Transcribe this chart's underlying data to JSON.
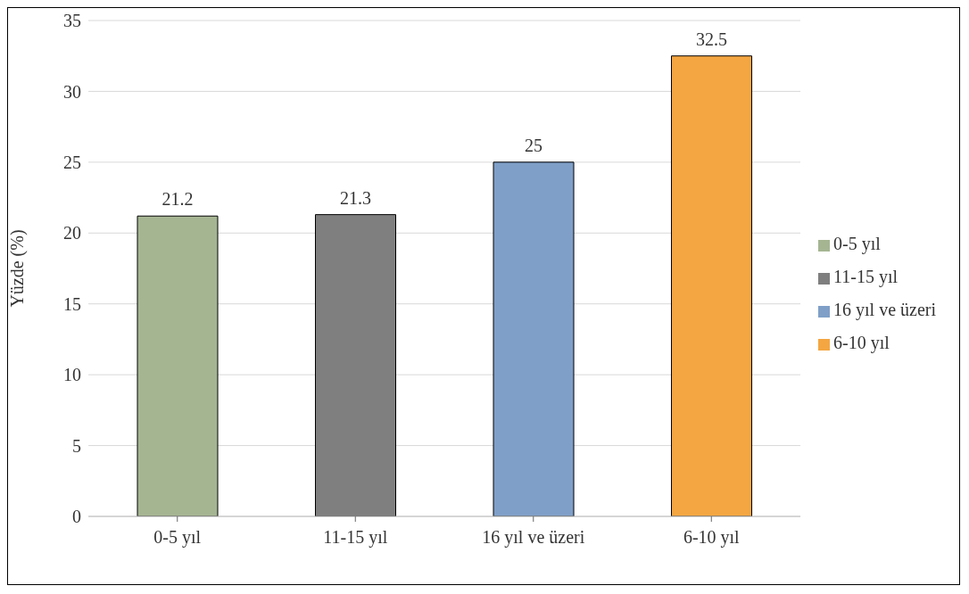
{
  "chart_data": {
    "type": "bar",
    "ylabel": "Yüzde (%)",
    "categories": [
      "0-5 yıl",
      "11-15 yıl",
      "16 yıl ve üzeri",
      "6-10 yıl"
    ],
    "series": [
      {
        "name": "0-5 yıl",
        "color": "#a5b592",
        "values": [
          21.2,
          null,
          null,
          null
        ]
      },
      {
        "name": "11-15 yıl",
        "color": "#7f7f7f",
        "values": [
          null,
          21.3,
          null,
          null
        ]
      },
      {
        "name": "16 yıl ve üzeri",
        "color": "#7f9fc8",
        "values": [
          null,
          null,
          25,
          null
        ]
      },
      {
        "name": "6-10 yıl",
        "color": "#f4a642",
        "values": [
          null,
          null,
          null,
          32.5
        ]
      }
    ],
    "stacked": true,
    "ylim": [
      0,
      35
    ],
    "yticks": [
      0,
      5,
      10,
      15,
      20,
      25,
      30,
      35
    ],
    "grid": "y",
    "legend": "right",
    "data_labels": true
  }
}
